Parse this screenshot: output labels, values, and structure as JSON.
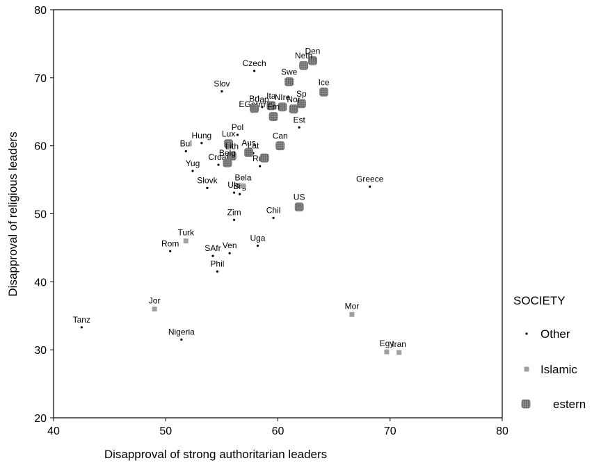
{
  "chart_data": {
    "type": "scatter",
    "xlabel": "Disapproval of strong authoritarian leaders",
    "ylabel": "Disapproval of religious leaders",
    "xlim": [
      40,
      80
    ],
    "ylim": [
      20,
      80
    ],
    "xticks": [
      40,
      50,
      60,
      70,
      80
    ],
    "yticks": [
      20,
      30,
      40,
      50,
      60,
      70,
      80
    ],
    "legend_title": "SOCIETY",
    "legend_position": "right",
    "series": [
      {
        "name": "Other",
        "marker": "dot",
        "color": "#000000",
        "points": [
          {
            "label": "Czech",
            "x": 57.9,
            "y": 71.0
          },
          {
            "label": "Slov",
            "x": 55.0,
            "y": 68.0
          },
          {
            "label": "EGerm",
            "x": 57.7,
            "y": 65.0
          },
          {
            "label": "Jap",
            "x": 58.6,
            "y": 65.7
          },
          {
            "label": "Est",
            "x": 61.9,
            "y": 62.7
          },
          {
            "label": "Pol",
            "x": 56.4,
            "y": 61.6
          },
          {
            "label": "Hung",
            "x": 53.2,
            "y": 60.4
          },
          {
            "label": "Bul",
            "x": 51.8,
            "y": 59.2
          },
          {
            "label": "Lat",
            "x": 57.8,
            "y": 58.9
          },
          {
            "label": "Yug",
            "x": 52.4,
            "y": 56.3
          },
          {
            "label": "Croat",
            "x": 54.7,
            "y": 57.2
          },
          {
            "label": "Rus",
            "x": 58.4,
            "y": 57.0
          },
          {
            "label": "Slovk",
            "x": 53.7,
            "y": 53.8
          },
          {
            "label": "Ukr",
            "x": 56.1,
            "y": 53.1
          },
          {
            "label": "Brg",
            "x": 56.6,
            "y": 52.9
          },
          {
            "label": "Greece",
            "x": 68.2,
            "y": 54.0
          },
          {
            "label": "Zim",
            "x": 56.1,
            "y": 49.1
          },
          {
            "label": "Chil",
            "x": 59.6,
            "y": 49.4
          },
          {
            "label": "Rom",
            "x": 50.4,
            "y": 44.5
          },
          {
            "label": "SAfr",
            "x": 54.2,
            "y": 43.8
          },
          {
            "label": "Ven",
            "x": 55.7,
            "y": 44.2
          },
          {
            "label": "Uga",
            "x": 58.2,
            "y": 45.3
          },
          {
            "label": "Phil",
            "x": 54.6,
            "y": 41.5
          },
          {
            "label": "Tanz",
            "x": 42.5,
            "y": 33.3
          },
          {
            "label": "Nigeria",
            "x": 51.4,
            "y": 31.5
          }
        ]
      },
      {
        "name": "Islamic",
        "marker": "square",
        "color": "#a0a0a0",
        "points": [
          {
            "label": "Turk",
            "x": 51.8,
            "y": 46.0
          },
          {
            "label": "Bela",
            "x": 56.9,
            "y": 54.1
          },
          {
            "label": "Jor",
            "x": 49.0,
            "y": 36.0
          },
          {
            "label": "Mor",
            "x": 66.6,
            "y": 35.2
          },
          {
            "label": "Egy",
            "x": 69.7,
            "y": 29.7
          },
          {
            "label": "Iran",
            "x": 70.8,
            "y": 29.6
          }
        ]
      },
      {
        "name": "estern",
        "marker": "block",
        "color": "#707070",
        "points": [
          {
            "label": "Den",
            "x": 63.1,
            "y": 72.5
          },
          {
            "label": "Neth",
            "x": 62.3,
            "y": 71.8
          },
          {
            "label": "Swe",
            "x": 61.0,
            "y": 69.4
          },
          {
            "label": "Ice",
            "x": 64.1,
            "y": 67.9
          },
          {
            "label": "Sp",
            "x": 62.1,
            "y": 66.2
          },
          {
            "label": "NIre",
            "x": 60.4,
            "y": 65.7
          },
          {
            "label": "Ita",
            "x": 59.4,
            "y": 65.9
          },
          {
            "label": "Bri",
            "x": 57.9,
            "y": 65.5
          },
          {
            "label": "Frn",
            "x": 59.6,
            "y": 64.3
          },
          {
            "label": "Nor",
            "x": 61.4,
            "y": 65.4
          },
          {
            "label": "Lux",
            "x": 55.6,
            "y": 60.3
          },
          {
            "label": "Aus",
            "x": 57.4,
            "y": 59.0
          },
          {
            "label": "Lith",
            "x": 55.9,
            "y": 58.5
          },
          {
            "label": "Can",
            "x": 60.2,
            "y": 60.0
          },
          {
            "label": "Belg",
            "x": 55.5,
            "y": 57.5
          },
          {
            "label": "Rus2",
            "x": 58.8,
            "y": 58.2
          },
          {
            "label": "US",
            "x": 61.9,
            "y": 51.0
          }
        ]
      }
    ]
  }
}
